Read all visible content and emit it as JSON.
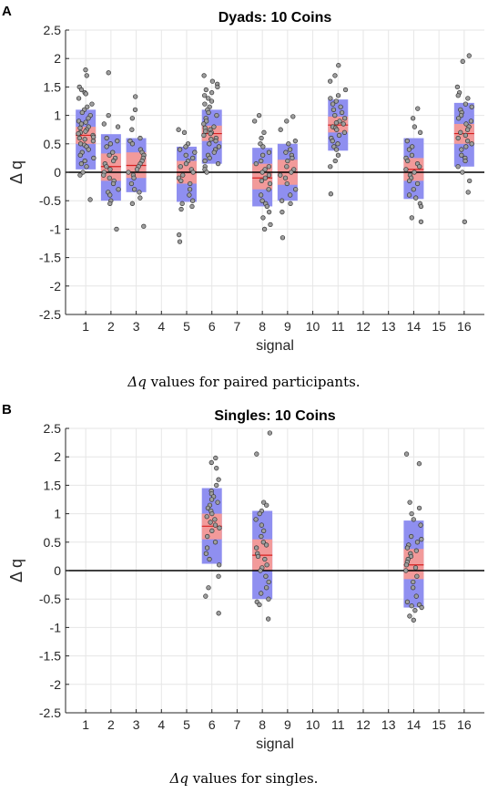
{
  "chart_data": [
    {
      "type": "box_scatter",
      "panel": "A",
      "title": "Dyads: 10 Coins",
      "xlabel": "signal",
      "ylabel": "Δ q",
      "caption_symbol": "Δq",
      "caption_text": "values for paired participants.",
      "xlim": [
        0.2,
        16.8
      ],
      "ylim": [
        -2.5,
        2.5
      ],
      "xticks": [
        1,
        2,
        3,
        4,
        5,
        6,
        7,
        8,
        9,
        10,
        11,
        12,
        13,
        14,
        15,
        16
      ],
      "yticks": [
        2.5,
        2,
        1.5,
        1,
        0.5,
        0,
        -0.5,
        -1,
        -1.5,
        -2,
        -2.5
      ],
      "ytick_labels": [
        "2.5",
        "2",
        "1.5",
        "1",
        "0.5",
        "0",
        "-0.5",
        "-1",
        "-1.5",
        "-2",
        "-2.5"
      ],
      "grid": true,
      "colors": {
        "sd_box": "#8f8ff0",
        "ci_box": "#f29a9a",
        "mean_line": "#d62020",
        "point_fill": "#9e9e9e",
        "zero_line": "#000000"
      },
      "groups": [
        {
          "signal": 1,
          "mean": 0.65,
          "sd_low": 0.05,
          "sd_high": 1.1,
          "ci_low": 0.5,
          "ci_high": 0.8,
          "points": [
            1.8,
            1.7,
            1.5,
            1.45,
            1.4,
            1.38,
            1.3,
            1.2,
            1.15,
            1.1,
            1.05,
            1.0,
            0.95,
            0.9,
            0.88,
            0.85,
            0.8,
            0.78,
            0.75,
            0.72,
            0.7,
            0.68,
            0.65,
            0.62,
            0.6,
            0.58,
            0.55,
            0.5,
            0.48,
            0.45,
            0.4,
            0.35,
            0.3,
            0.25,
            0.2,
            0.15,
            0.1,
            0.0,
            -0.05,
            -0.48
          ]
        },
        {
          "signal": 2,
          "mean": 0.1,
          "sd_low": -0.5,
          "sd_high": 0.67,
          "ci_low": -0.15,
          "ci_high": 0.33,
          "points": [
            1.75,
            1.0,
            0.85,
            0.8,
            0.6,
            0.55,
            0.5,
            0.45,
            0.35,
            0.3,
            0.25,
            0.2,
            0.15,
            0.1,
            0.05,
            0.0,
            -0.05,
            -0.1,
            -0.15,
            -0.2,
            -0.3,
            -0.35,
            -0.4,
            -0.5,
            -0.55,
            -1.0
          ]
        },
        {
          "signal": 3,
          "mean": 0.12,
          "sd_low": -0.35,
          "sd_high": 0.6,
          "ci_low": -0.1,
          "ci_high": 0.35,
          "points": [
            1.33,
            1.1,
            0.95,
            0.75,
            0.6,
            0.55,
            0.5,
            0.4,
            0.35,
            0.3,
            0.25,
            0.2,
            0.15,
            0.1,
            0.05,
            0.0,
            -0.05,
            -0.1,
            -0.2,
            -0.3,
            -0.35,
            -0.45,
            -0.55,
            -0.95
          ]
        },
        {
          "signal": 5,
          "mean": 0.0,
          "sd_low": -0.52,
          "sd_high": 0.45,
          "ci_low": -0.2,
          "ci_high": 0.2,
          "points": [
            0.75,
            0.7,
            0.5,
            0.45,
            0.4,
            0.35,
            0.3,
            0.25,
            0.2,
            0.15,
            0.1,
            0.05,
            0.0,
            -0.05,
            -0.1,
            -0.15,
            -0.2,
            -0.3,
            -0.4,
            -0.5,
            -0.55,
            -0.6,
            -0.65,
            -1.1,
            -1.22
          ]
        },
        {
          "signal": 6,
          "mean": 0.68,
          "sd_low": 0.15,
          "sd_high": 1.1,
          "ci_low": 0.55,
          "ci_high": 0.82,
          "points": [
            1.7,
            1.6,
            1.55,
            1.5,
            1.45,
            1.4,
            1.35,
            1.3,
            1.25,
            1.2,
            1.15,
            1.1,
            1.05,
            1.0,
            0.95,
            0.9,
            0.85,
            0.8,
            0.78,
            0.75,
            0.72,
            0.7,
            0.68,
            0.65,
            0.6,
            0.58,
            0.55,
            0.5,
            0.45,
            0.4,
            0.35,
            0.3,
            0.25,
            0.2,
            0.15,
            0.1,
            0.05,
            0.0
          ]
        },
        {
          "signal": 8,
          "mean": -0.1,
          "sd_low": -0.6,
          "sd_high": 0.43,
          "ci_low": -0.3,
          "ci_high": 0.15,
          "points": [
            1.0,
            0.9,
            0.7,
            0.6,
            0.5,
            0.45,
            0.35,
            0.3,
            0.2,
            0.15,
            0.1,
            0.05,
            0.0,
            -0.05,
            -0.1,
            -0.15,
            -0.2,
            -0.3,
            -0.4,
            -0.5,
            -0.55,
            -0.6,
            -0.7,
            -0.8,
            -0.92,
            -1.0
          ]
        },
        {
          "signal": 9,
          "mean": 0.0,
          "sd_low": -0.5,
          "sd_high": 0.5,
          "ci_low": -0.22,
          "ci_high": 0.22,
          "points": [
            0.98,
            0.9,
            0.75,
            0.55,
            0.5,
            0.4,
            0.35,
            0.3,
            0.25,
            0.2,
            0.1,
            0.05,
            0.0,
            -0.05,
            -0.1,
            -0.2,
            -0.3,
            -0.4,
            -0.5,
            -0.55,
            -0.7,
            -1.15
          ]
        },
        {
          "signal": 11,
          "mean": 0.83,
          "sd_low": 0.38,
          "sd_high": 1.28,
          "ci_low": 0.7,
          "ci_high": 0.98,
          "points": [
            1.88,
            1.7,
            1.6,
            1.45,
            1.35,
            1.3,
            1.25,
            1.2,
            1.15,
            1.1,
            1.05,
            1.0,
            0.95,
            0.9,
            0.87,
            0.85,
            0.8,
            0.78,
            0.75,
            0.7,
            0.65,
            0.6,
            0.55,
            0.5,
            0.45,
            0.4,
            0.3,
            0.2,
            0.1,
            -0.38
          ]
        },
        {
          "signal": 14,
          "mean": 0.05,
          "sd_low": -0.47,
          "sd_high": 0.6,
          "ci_low": -0.15,
          "ci_high": 0.25,
          "points": [
            1.12,
            0.95,
            0.8,
            0.7,
            0.55,
            0.45,
            0.4,
            0.3,
            0.25,
            0.2,
            0.15,
            0.1,
            0.05,
            0.0,
            -0.05,
            -0.1,
            -0.15,
            -0.2,
            -0.3,
            -0.4,
            -0.45,
            -0.55,
            -0.6,
            -0.8,
            -0.87
          ]
        },
        {
          "signal": 16,
          "mean": 0.68,
          "sd_low": 0.1,
          "sd_high": 1.22,
          "ci_low": 0.5,
          "ci_high": 0.85,
          "points": [
            2.05,
            1.95,
            1.5,
            1.4,
            1.35,
            1.3,
            1.2,
            1.15,
            1.1,
            1.05,
            1.0,
            0.95,
            0.9,
            0.85,
            0.8,
            0.75,
            0.7,
            0.65,
            0.6,
            0.55,
            0.5,
            0.45,
            0.4,
            0.3,
            0.25,
            0.2,
            0.1,
            0.0,
            -0.15,
            -0.35,
            -0.87
          ]
        }
      ]
    },
    {
      "type": "box_scatter",
      "panel": "B",
      "title": "Singles: 10 Coins",
      "xlabel": "signal",
      "ylabel": "Δ q",
      "caption_symbol": "Δq",
      "caption_text": "values for singles.",
      "xlim": [
        0.2,
        16.8
      ],
      "ylim": [
        -2.5,
        2.5
      ],
      "xticks": [
        1,
        2,
        3,
        4,
        5,
        6,
        7,
        8,
        9,
        10,
        11,
        12,
        13,
        14,
        15,
        16
      ],
      "yticks": [
        2.5,
        2,
        1.5,
        1,
        0.5,
        0,
        -0.5,
        -1,
        -1.5,
        -2,
        -2.5
      ],
      "ytick_labels": [
        "2.5",
        "2",
        "1.5",
        "1",
        "0.5",
        "0",
        "-0.5",
        "-1",
        "-1.5",
        "-2",
        "-2.5"
      ],
      "grid": true,
      "colors": {
        "sd_box": "#8f8ff0",
        "ci_box": "#f29a9a",
        "mean_line": "#d62020",
        "point_fill": "#9e9e9e",
        "zero_line": "#000000"
      },
      "groups": [
        {
          "signal": 6,
          "mean": 0.78,
          "sd_low": 0.12,
          "sd_high": 1.45,
          "ci_low": 0.55,
          "ci_high": 1.0,
          "points": [
            1.98,
            1.9,
            1.8,
            1.6,
            1.5,
            1.4,
            1.35,
            1.3,
            1.25,
            1.2,
            1.15,
            1.1,
            1.05,
            1.0,
            0.95,
            0.9,
            0.85,
            0.8,
            0.75,
            0.7,
            0.6,
            0.5,
            0.4,
            0.3,
            0.2,
            0.1,
            -0.1,
            -0.3,
            -0.45,
            -0.75
          ]
        },
        {
          "signal": 8,
          "mean": 0.27,
          "sd_low": -0.5,
          "sd_high": 1.05,
          "ci_low": 0.0,
          "ci_high": 0.55,
          "points": [
            2.42,
            2.05,
            1.2,
            1.15,
            1.05,
            1.0,
            0.9,
            0.8,
            0.7,
            0.6,
            0.5,
            0.45,
            0.4,
            0.3,
            0.25,
            0.2,
            0.1,
            0.05,
            0.0,
            -0.1,
            -0.2,
            -0.3,
            -0.4,
            -0.5,
            -0.55,
            -0.6,
            -0.85
          ]
        },
        {
          "signal": 14,
          "mean": 0.1,
          "sd_low": -0.65,
          "sd_high": 0.88,
          "ci_low": -0.15,
          "ci_high": 0.38,
          "points": [
            2.05,
            1.88,
            1.2,
            1.1,
            1.0,
            0.9,
            0.8,
            0.6,
            0.55,
            0.5,
            0.45,
            0.4,
            0.35,
            0.3,
            0.25,
            0.2,
            0.15,
            0.1,
            0.05,
            0.0,
            -0.1,
            -0.2,
            -0.3,
            -0.45,
            -0.55,
            -0.6,
            -0.62,
            -0.65,
            -0.7,
            -0.8,
            -0.87
          ]
        }
      ]
    }
  ]
}
